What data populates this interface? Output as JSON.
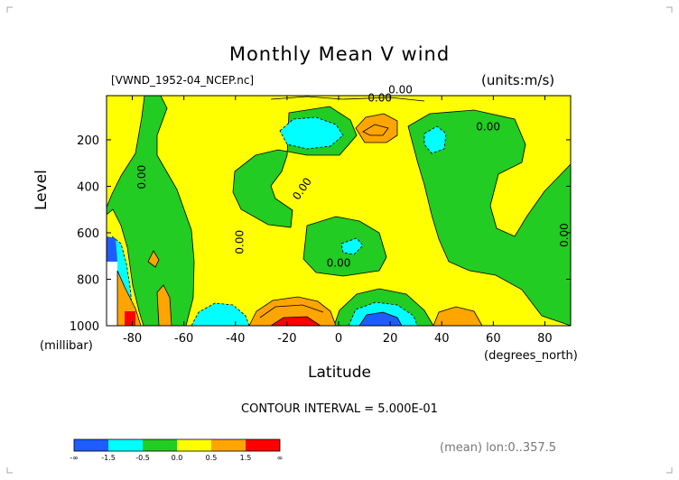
{
  "chart_data": {
    "type": "contour",
    "title": "Monthly Mean V wind",
    "dataset_label": "[VWND_1952-04_NCEP.nc]",
    "units_label": "(units:m/s)",
    "xlabel": "Latitude",
    "x_unit_label": "(degrees_north)",
    "ylabel": "Level",
    "y_unit_label": "(millibar)",
    "xlim": [
      -90,
      90
    ],
    "ylim": [
      1000,
      10
    ],
    "x_ticks": [
      -80,
      -60,
      -40,
      -20,
      0,
      20,
      40,
      60,
      80
    ],
    "y_ticks": [
      200,
      400,
      600,
      800,
      1000
    ],
    "contour_interval_text": "CONTOUR INTERVAL = 5.000E-01",
    "averaging_text": "(mean) lon:0..357.5",
    "contour_labels": [
      {
        "text": "0.00",
        "lat": 16,
        "lev": 35
      },
      {
        "text": "0.00",
        "lat": 24,
        "lev": 1
      },
      {
        "text": "0.00",
        "lat": 58,
        "lev": 160
      },
      {
        "text": "0.00",
        "lat": -75,
        "lev": 360
      },
      {
        "text": "0.00",
        "lat": -13,
        "lev": 420
      },
      {
        "text": "0.00",
        "lat": -37,
        "lev": 640
      },
      {
        "text": "0.00",
        "lat": 0,
        "lev": 745
      },
      {
        "text": "0.00",
        "lat": 89,
        "lev": 610
      }
    ],
    "legend": {
      "colors": [
        "#1e5cff",
        "#00ffff",
        "#22cc22",
        "#ffff00",
        "#ffa500",
        "#ff0000"
      ],
      "labels": [
        "-∞",
        "-1.5",
        "-0.5",
        "0.0",
        "0.5",
        "1.5",
        "∞"
      ]
    }
  }
}
